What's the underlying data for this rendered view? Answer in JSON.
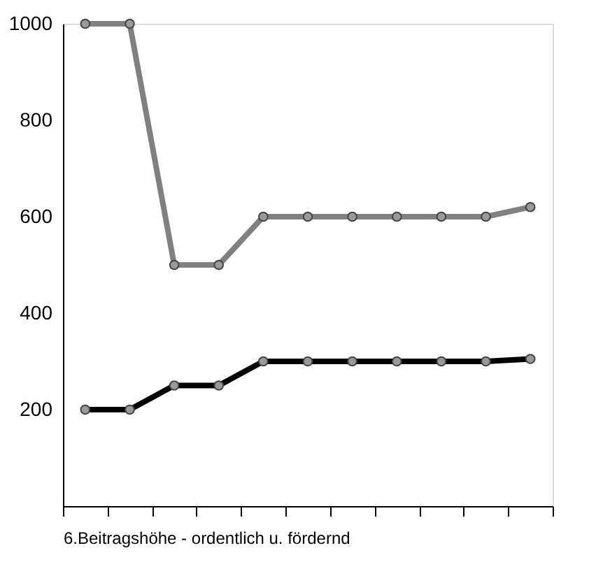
{
  "chart_data": {
    "type": "line",
    "xlabel": "6.Beitragshöhe - ordentlich u. fördernd",
    "categories": [
      null,
      null,
      null,
      null,
      null,
      null,
      null,
      null,
      null,
      null,
      null
    ],
    "series": [
      {
        "color": "#808080",
        "values": [
          1000,
          1000,
          500,
          500,
          600,
          600,
          600,
          600,
          600,
          600,
          620
        ]
      },
      {
        "color": "#000000",
        "values": [
          200,
          200,
          250,
          250,
          300,
          300,
          300,
          300,
          300,
          300,
          305
        ]
      }
    ],
    "ylim": [
      0,
      1000
    ],
    "yticks": [
      200,
      400,
      600,
      800,
      1000
    ],
    "marker": "circle",
    "line_style": "solid",
    "grid": false,
    "legend": false,
    "tick_labels": "y"
  }
}
